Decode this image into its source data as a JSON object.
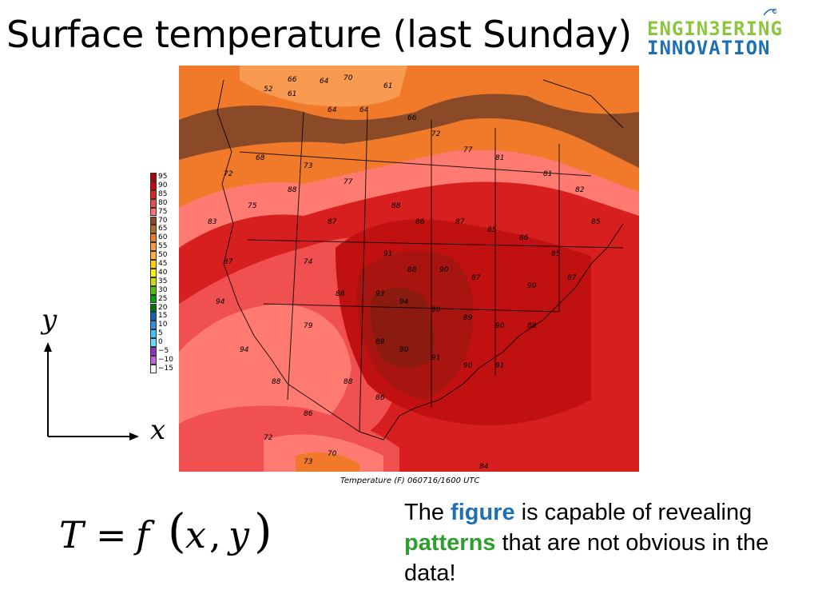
{
  "title": "Surface temperature (last Sunday)",
  "logo": {
    "line1": "ENGIN3ERING",
    "line2": "INNOVATION",
    "color1": "#8cc63f",
    "color2": "#1f6fb5"
  },
  "map": {
    "caption": "Temperature (F) 060716/1600 UTC",
    "colorbar": {
      "labels": [
        "95",
        "90",
        "85",
        "80",
        "75",
        "70",
        "65",
        "60",
        "55",
        "50",
        "45",
        "40",
        "35",
        "30",
        "25",
        "20",
        "15",
        "10",
        "5",
        "0",
        "−5",
        "−10",
        "−15"
      ],
      "colors": [
        "#b30000",
        "#d40000",
        "#e81d1d",
        "#f24a4a",
        "#ff7070",
        "#8a4a20",
        "#b06a30",
        "#f07820",
        "#ff9640",
        "#ffb040",
        "#ffd000",
        "#fff000",
        "#c8e000",
        "#50c000",
        "#00a000",
        "#007800",
        "#1060c0",
        "#3090e0",
        "#40c0ff",
        "#60e0ff",
        "#9030c0",
        "#c060e0",
        "#ffffff"
      ]
    },
    "zone_colors": {
      "darkest": "#8b1a10",
      "dark": "#c01010",
      "red": "#d81f1f",
      "lightred": "#f05050",
      "pink": "#ff7a70",
      "orange": "#f07a2a",
      "lightorange": "#f89a50",
      "brown": "#8a4a28"
    }
  },
  "axes": {
    "y_label": "y",
    "x_label": "x"
  },
  "formula": {
    "T": "T",
    "eq": "=",
    "f": "f",
    "lp": "(",
    "x": "x",
    "comma": ",",
    "y": "y",
    "rp": ")"
  },
  "note": {
    "part1": "The ",
    "figure": "figure",
    "part2": " is capable of revealing ",
    "patterns": "patterns",
    "part3": " that are not obvious in the data!",
    "figure_color": "#1f6fb5",
    "patterns_color": "#2e9e2e"
  }
}
